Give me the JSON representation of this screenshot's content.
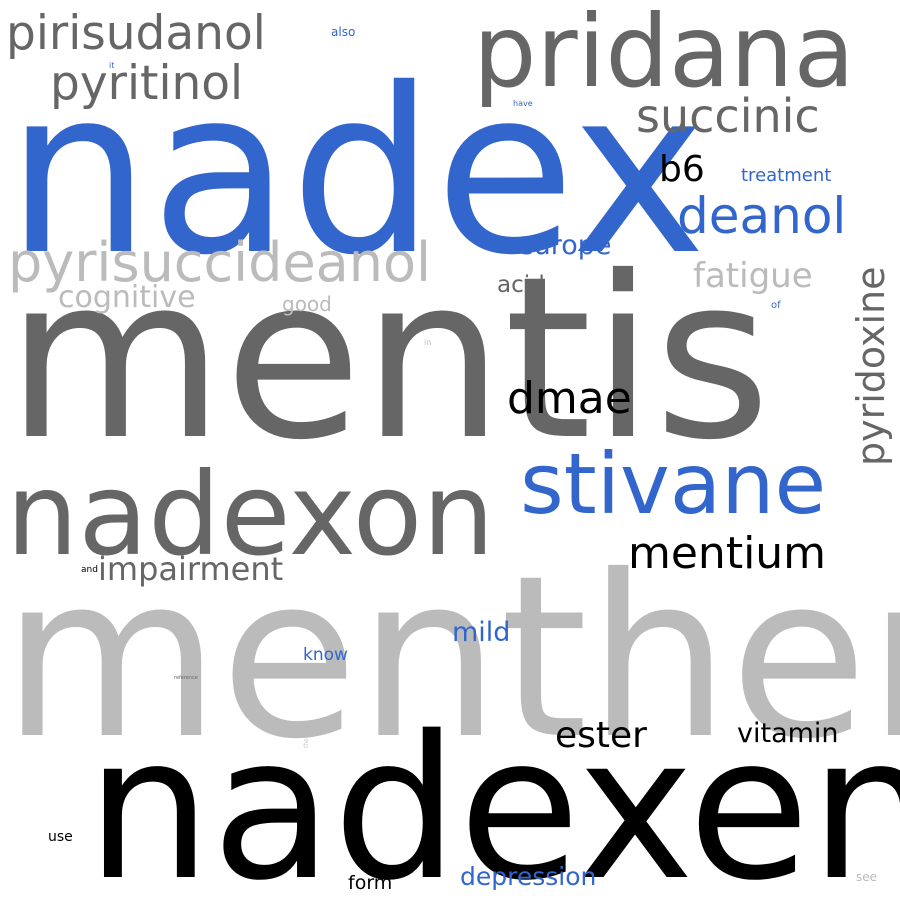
{
  "colors": {
    "blue": "#3366cc",
    "dark_gray": "#666666",
    "light_gray": "#bbbbbb",
    "black": "#000000",
    "pale_gray": "#c8c8c8"
  },
  "words": [
    {
      "text": "nadex",
      "color": "#3366cc"
    },
    {
      "text": "mentis",
      "color": "#666666"
    },
    {
      "text": "menthen",
      "color": "#bbbbbb"
    },
    {
      "text": "nadexen",
      "color": "#000000"
    },
    {
      "text": "nadexon",
      "color": "#666666"
    },
    {
      "text": "pridana",
      "color": "#666666"
    },
    {
      "text": "stivane",
      "color": "#3366cc"
    },
    {
      "text": "pyrisuccideanol",
      "color": "#bbbbbb"
    },
    {
      "text": "pirisudanol",
      "color": "#666666"
    },
    {
      "text": "pyritinol",
      "color": "#666666"
    },
    {
      "text": "succinic",
      "color": "#666666"
    },
    {
      "text": "deanol",
      "color": "#3366cc"
    },
    {
      "text": "pyridoxine",
      "color": "#666666"
    },
    {
      "text": "mentium",
      "color": "#000000"
    },
    {
      "text": "dmae",
      "color": "#000000"
    },
    {
      "text": "b6",
      "color": "#000000"
    },
    {
      "text": "fatigue",
      "color": "#bbbbbb"
    },
    {
      "text": "cognitive",
      "color": "#bbbbbb"
    },
    {
      "text": "impairment",
      "color": "#666666"
    },
    {
      "text": "ester",
      "color": "#000000"
    },
    {
      "text": "vitamin",
      "color": "#000000"
    },
    {
      "text": "europe",
      "color": "#3366cc"
    },
    {
      "text": "mild",
      "color": "#3366cc"
    },
    {
      "text": "depression",
      "color": "#3366cc"
    },
    {
      "text": "treatment",
      "color": "#3366cc"
    },
    {
      "text": "acid",
      "color": "#666666"
    },
    {
      "text": "good",
      "color": "#bbbbbb"
    },
    {
      "text": "know",
      "color": "#3366cc"
    },
    {
      "text": "form",
      "color": "#000000"
    },
    {
      "text": "use",
      "color": "#000000"
    },
    {
      "text": "also",
      "color": "#3366cc"
    },
    {
      "text": "see",
      "color": "#bbbbbb"
    },
    {
      "text": "and",
      "color": "#000000"
    },
    {
      "text": "of",
      "color": "#3366cc"
    },
    {
      "text": "it",
      "color": "#3366cc"
    },
    {
      "text": "have",
      "color": "#3366cc"
    },
    {
      "text": "in",
      "color": "#bbbbbb"
    },
    {
      "text": "reference",
      "color": "#666666"
    },
    {
      "text": "the",
      "color": "#c8c8c8"
    }
  ]
}
